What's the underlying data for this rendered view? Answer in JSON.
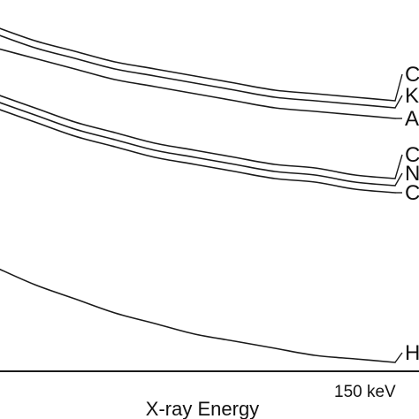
{
  "chart_data": {
    "type": "line",
    "xlabel": "X-ray Energy",
    "ylabel": "",
    "x_ticks": [
      "150 keV"
    ],
    "grid": false,
    "legend": "none",
    "x": [
      0,
      0.1,
      0.2,
      0.3,
      0.4,
      0.5,
      0.6,
      0.7,
      0.8,
      0.9,
      1.0
    ],
    "ylim": [
      0,
      1
    ],
    "series": [
      {
        "name": "C",
        "values": [
          1.0,
          0.96,
          0.93,
          0.9,
          0.88,
          0.86,
          0.84,
          0.82,
          0.81,
          0.8,
          0.79
        ]
      },
      {
        "name": "K",
        "values": [
          0.98,
          0.94,
          0.91,
          0.88,
          0.86,
          0.84,
          0.82,
          0.8,
          0.79,
          0.78,
          0.77
        ]
      },
      {
        "name": "A",
        "values": [
          0.94,
          0.91,
          0.88,
          0.85,
          0.83,
          0.81,
          0.79,
          0.77,
          0.76,
          0.75,
          0.74
        ]
      },
      {
        "name": "C",
        "values": [
          0.81,
          0.77,
          0.73,
          0.7,
          0.67,
          0.65,
          0.63,
          0.61,
          0.6,
          0.58,
          0.57
        ]
      },
      {
        "name": "N",
        "values": [
          0.79,
          0.75,
          0.71,
          0.68,
          0.65,
          0.63,
          0.61,
          0.59,
          0.58,
          0.56,
          0.55
        ]
      },
      {
        "name": "C",
        "values": [
          0.77,
          0.73,
          0.69,
          0.66,
          0.63,
          0.61,
          0.59,
          0.57,
          0.56,
          0.54,
          0.53
        ]
      },
      {
        "name": "H",
        "values": [
          0.32,
          0.27,
          0.23,
          0.19,
          0.16,
          0.13,
          0.11,
          0.09,
          0.07,
          0.06,
          0.05
        ]
      }
    ]
  }
}
